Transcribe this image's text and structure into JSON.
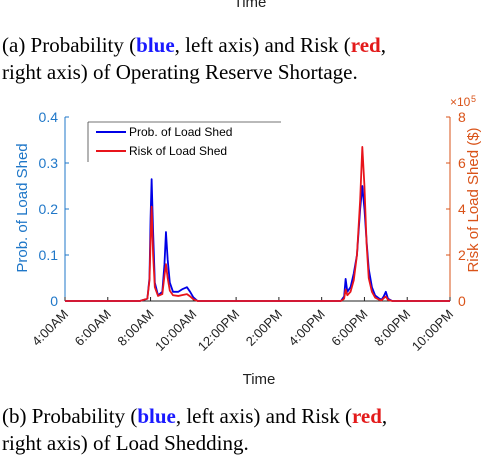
{
  "top_axis_label": "Time",
  "caption_a": {
    "prefix": "(a) Probability (",
    "blue_word": "blue",
    "mid1": ", left axis) and Risk (",
    "red_word": "red",
    "line2": "right axis) of Operating Reserve Shortage."
  },
  "caption_b": {
    "prefix": "(b) Probability (",
    "blue_word": "blue",
    "mid1": ", left axis) and Risk (",
    "red_word": "red",
    "line2": "right axis) of Load Shedding."
  },
  "colors": {
    "blue": "#0000e6",
    "red": "#e8141b",
    "left_axis": "#1f77c8",
    "right_axis": "#d95319"
  },
  "chart_data": {
    "type": "line",
    "xlabel": "Time",
    "ylabel_left": "Prob. of Load Shed",
    "ylabel_right": "Risk of Load Shed ($)",
    "right_axis_exponent": "×10",
    "right_axis_exponent_power": "5",
    "xlim": [
      4,
      22
    ],
    "ylim_left": [
      0,
      0.4
    ],
    "ylim_right": [
      0,
      8
    ],
    "x_ticks": [
      4,
      6,
      8,
      10,
      12,
      14,
      16,
      18,
      20,
      22
    ],
    "x_tick_labels": [
      "4:00AM",
      "6:00AM",
      "8:00AM",
      "10:00AM",
      "12:00PM",
      "2:00PM",
      "4:00PM",
      "6:00PM",
      "8:00PM",
      "10:00PM"
    ],
    "y_left_ticks": [
      0,
      0.1,
      0.2,
      0.3,
      0.4
    ],
    "y_left_tick_labels": [
      "0",
      "0.1",
      "0.2",
      "0.3",
      "0.4"
    ],
    "y_right_ticks": [
      0,
      2,
      4,
      6,
      8
    ],
    "y_right_tick_labels": [
      "0",
      "2",
      "4",
      "6",
      "8"
    ],
    "legend_placement": "top-left",
    "series": [
      {
        "name": "Prob. of Load Shed",
        "axis": "left",
        "color": "#0000e6",
        "x": [
          4,
          7.5,
          7.85,
          7.95,
          8.0,
          8.05,
          8.12,
          8.2,
          8.35,
          8.55,
          8.65,
          8.72,
          8.8,
          8.9,
          9.05,
          9.3,
          9.5,
          9.7,
          9.85,
          10.0,
          10.2,
          16.9,
          17.05,
          17.12,
          17.2,
          17.35,
          17.5,
          17.65,
          17.8,
          17.9,
          18.0,
          18.1,
          18.2,
          18.35,
          18.5,
          18.7,
          18.8,
          18.9,
          19.0,
          19.1,
          19.3,
          22
        ],
        "y": [
          0,
          0,
          0.005,
          0.05,
          0.18,
          0.265,
          0.15,
          0.04,
          0.012,
          0.02,
          0.08,
          0.15,
          0.09,
          0.04,
          0.02,
          0.02,
          0.026,
          0.03,
          0.02,
          0.008,
          0,
          0,
          0.01,
          0.048,
          0.02,
          0.03,
          0.06,
          0.1,
          0.2,
          0.25,
          0.2,
          0.13,
          0.07,
          0.03,
          0.012,
          0.005,
          0.003,
          0.01,
          0.02,
          0.005,
          0,
          0
        ]
      },
      {
        "name": "Risk of Load Shed",
        "axis": "right",
        "color": "#e8141b",
        "x": [
          4,
          7.5,
          7.85,
          7.95,
          8.0,
          8.05,
          8.12,
          8.2,
          8.35,
          8.55,
          8.65,
          8.72,
          8.8,
          8.9,
          9.05,
          9.3,
          9.5,
          9.7,
          9.85,
          10.0,
          10.2,
          16.9,
          17.05,
          17.12,
          17.2,
          17.35,
          17.5,
          17.65,
          17.8,
          17.9,
          18.0,
          18.1,
          18.2,
          18.35,
          18.5,
          18.7,
          18.8,
          18.9,
          19.0,
          19.1,
          19.3,
          22
        ],
        "y": [
          0,
          0,
          0.1,
          0.9,
          2.6,
          4.1,
          2.0,
          0.6,
          0.22,
          0.3,
          1.1,
          1.6,
          1.0,
          0.45,
          0.25,
          0.22,
          0.26,
          0.3,
          0.2,
          0.08,
          0,
          0,
          0.1,
          0.5,
          0.25,
          0.4,
          0.9,
          2.0,
          4.4,
          6.7,
          5.0,
          2.5,
          1.0,
          0.4,
          0.15,
          0.05,
          0.03,
          0.12,
          0.2,
          0.05,
          0,
          0
        ]
      }
    ]
  }
}
